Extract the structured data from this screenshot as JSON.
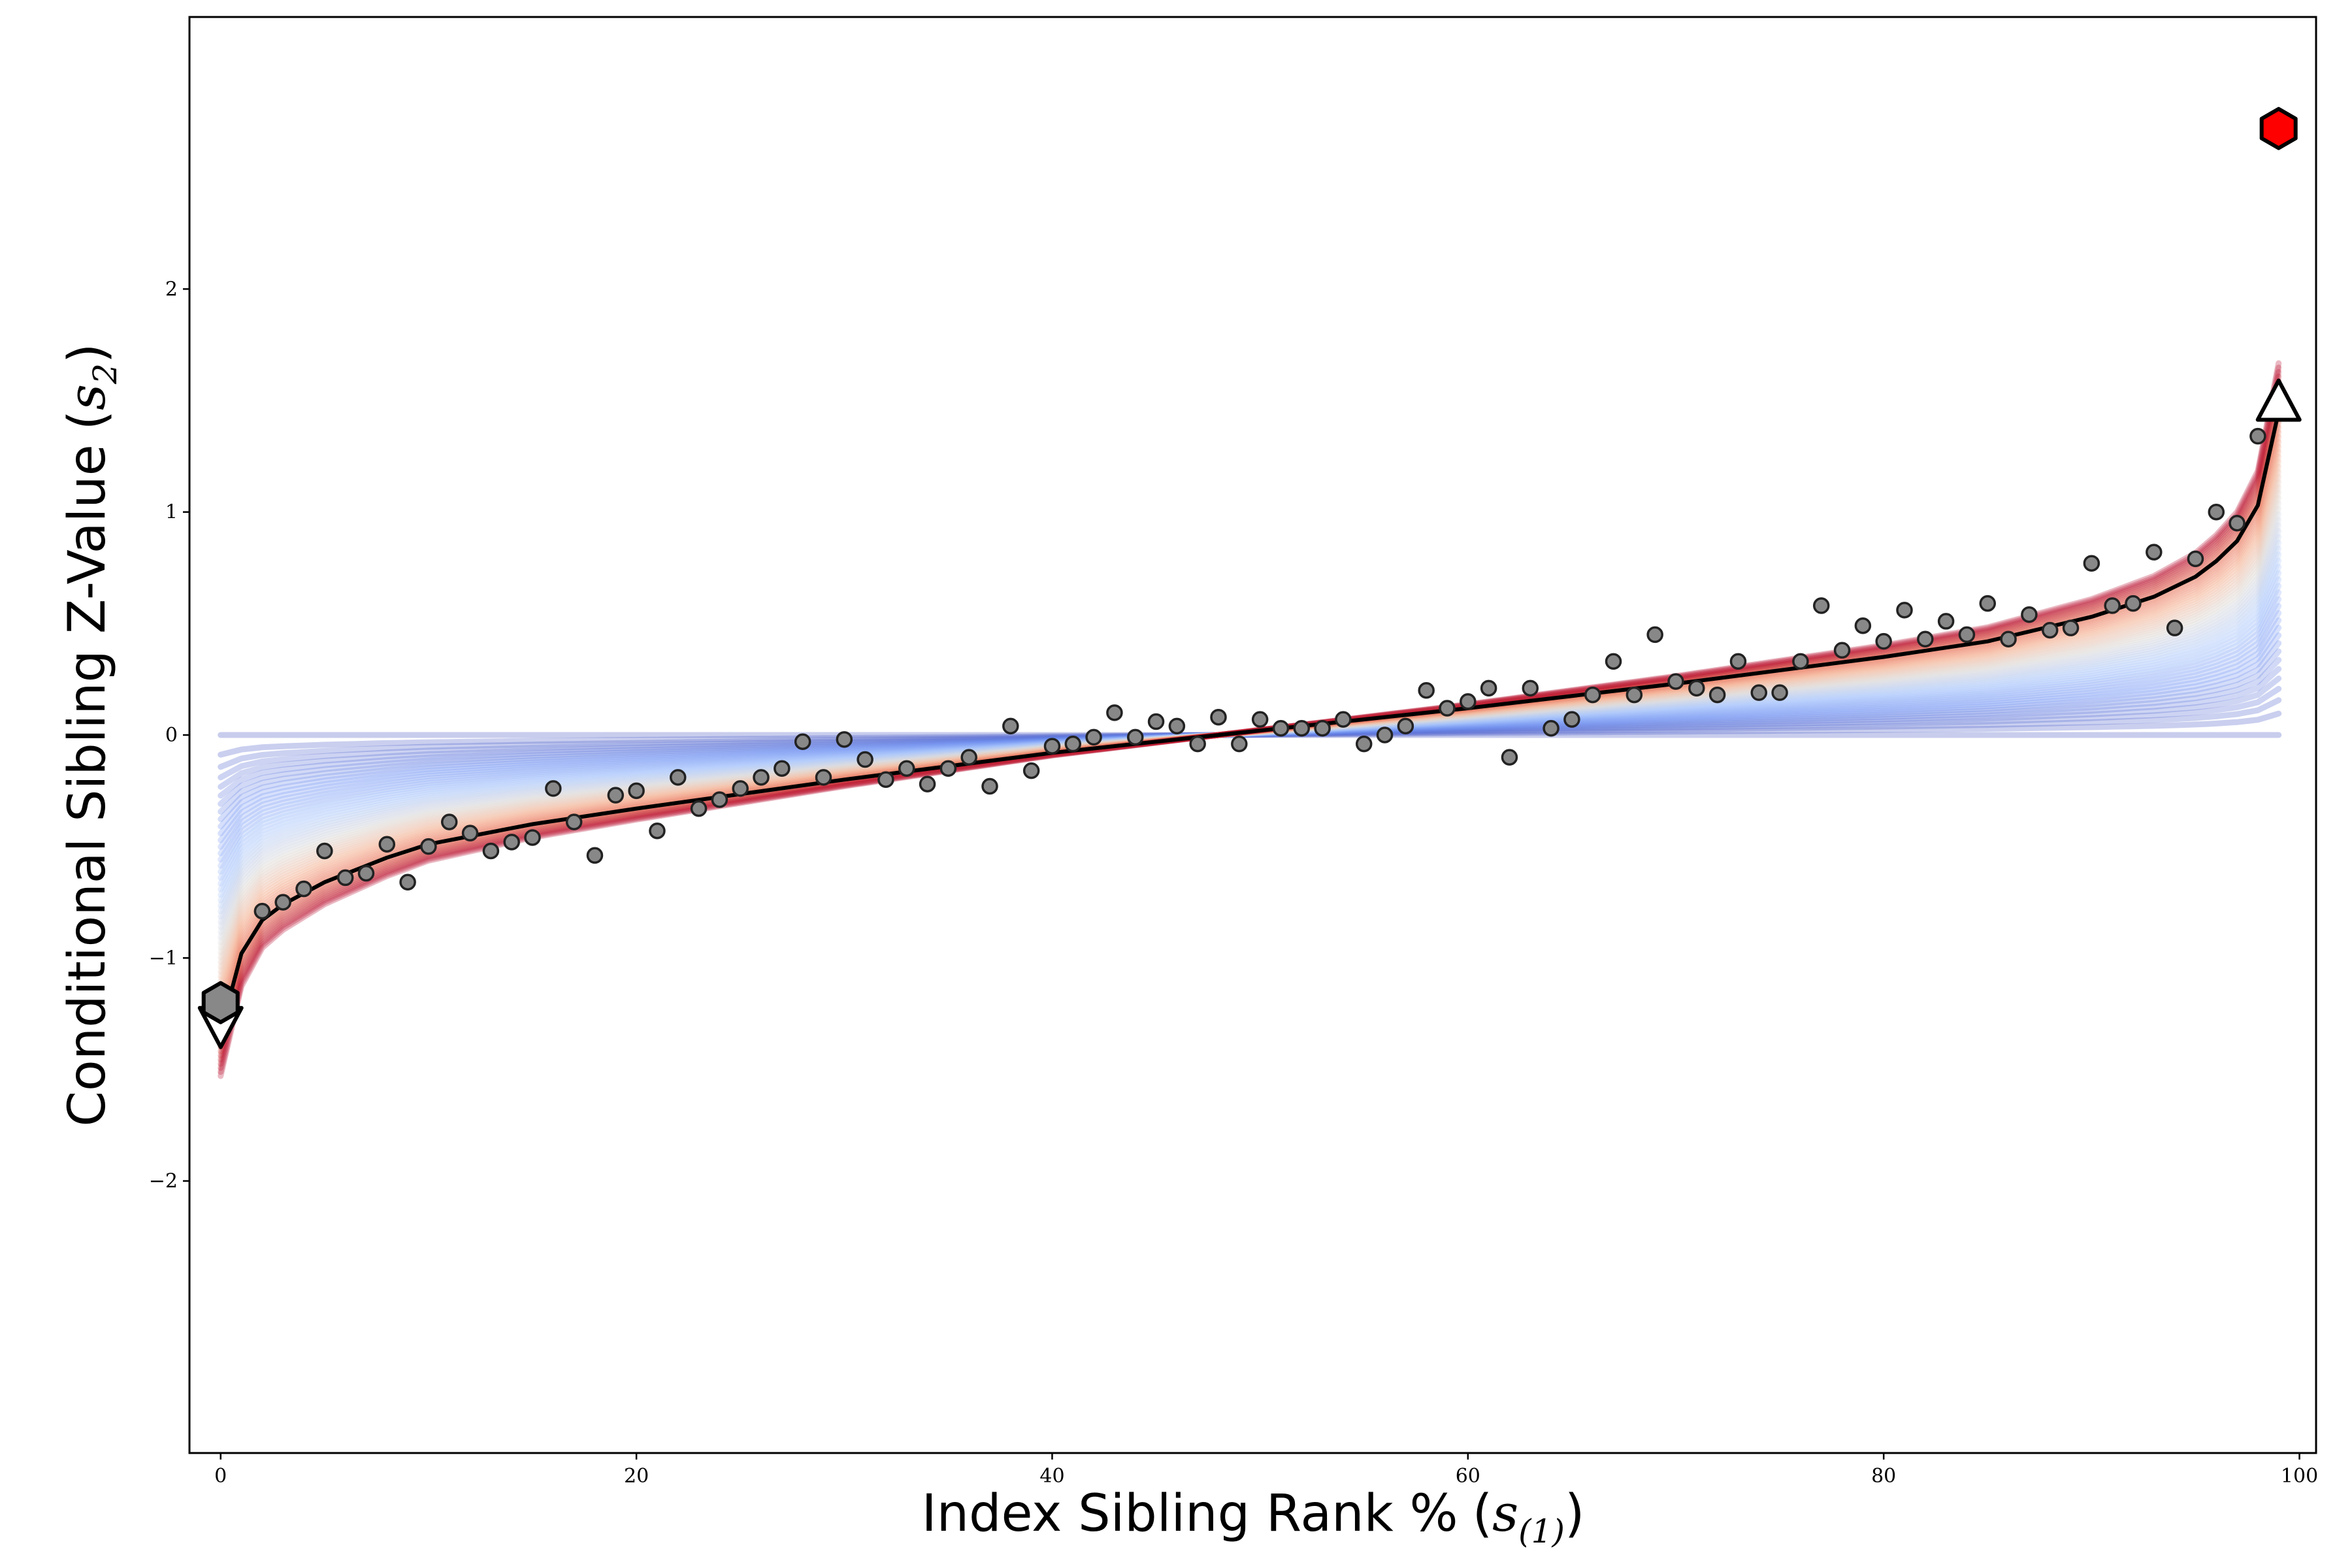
{
  "chart_data": {
    "type": "line",
    "xlabel": "Index Sibling Rank %",
    "xlabel_symbol": "s",
    "xlabel_subscript": "(1)",
    "ylabel": "Conditional Sibling Z-Value",
    "ylabel_symbol": "s",
    "ylabel_subscript": "2",
    "xlim": [
      -1.5,
      100.8
    ],
    "ylim": [
      -3.22,
      3.22
    ],
    "x_ticks": [
      0,
      20,
      40,
      60,
      80,
      100
    ],
    "y_ticks": [
      -2,
      -1,
      0,
      1,
      2
    ],
    "y_tick_labels": [
      "−2",
      "−1",
      "0",
      "1",
      "2"
    ],
    "grid": false,
    "legend": "none",
    "fan_band": {
      "description_colormap": "coolwarm",
      "x_range": [
        0,
        99
      ],
      "colors": [
        "#3b4cc0",
        "#6f92f3",
        "#aac7fd",
        "#dddcdc",
        "#f7b89c",
        "#e7745b",
        "#b40426"
      ]
    },
    "mean_curve": {
      "color": "#000000",
      "x": [
        0,
        1,
        2,
        3,
        5,
        8,
        10,
        15,
        20,
        30,
        40,
        50,
        60,
        70,
        80,
        85,
        90,
        93,
        95,
        96,
        97,
        98,
        99
      ],
      "y": [
        -1.33,
        -0.98,
        -0.83,
        -0.76,
        -0.66,
        -0.55,
        -0.49,
        -0.4,
        -0.33,
        -0.2,
        -0.08,
        0.02,
        0.12,
        0.23,
        0.35,
        0.42,
        0.53,
        0.62,
        0.71,
        0.78,
        0.87,
        1.03,
        1.45
      ]
    },
    "scatter_points": {
      "color": "#888888",
      "x": [
        2,
        3,
        4,
        5,
        6,
        7,
        8,
        9,
        10,
        11,
        12,
        13,
        14,
        15,
        16,
        17,
        18,
        19,
        20,
        21,
        22,
        23,
        24,
        25,
        26,
        27,
        28,
        29,
        30,
        31,
        32,
        33,
        34,
        35,
        36,
        37,
        38,
        39,
        40,
        41,
        42,
        43,
        44,
        45,
        46,
        47,
        48,
        49,
        50,
        51,
        52,
        53,
        54,
        55,
        56,
        57,
        58,
        59,
        60,
        61,
        62,
        63,
        64,
        65,
        66,
        67,
        68,
        69,
        70,
        71,
        72,
        73,
        74,
        75,
        76,
        77,
        78,
        79,
        80,
        81,
        82,
        83,
        84,
        85,
        86,
        87,
        88,
        89,
        90,
        91,
        92,
        93,
        94,
        95,
        96,
        97,
        98
      ],
      "y": [
        -0.79,
        -0.75,
        -0.69,
        -0.52,
        -0.64,
        -0.62,
        -0.49,
        -0.66,
        -0.5,
        -0.39,
        -0.44,
        -0.52,
        -0.48,
        -0.46,
        -0.24,
        -0.39,
        -0.54,
        -0.27,
        -0.25,
        -0.43,
        -0.19,
        -0.33,
        -0.29,
        -0.24,
        -0.19,
        -0.15,
        -0.03,
        -0.19,
        -0.02,
        -0.11,
        -0.2,
        -0.15,
        -0.22,
        -0.15,
        -0.1,
        -0.23,
        0.04,
        -0.16,
        -0.05,
        -0.04,
        -0.01,
        0.1,
        -0.01,
        0.06,
        0.04,
        -0.04,
        0.08,
        -0.04,
        0.07,
        0.03,
        0.03,
        0.03,
        0.07,
        -0.04,
        0.0,
        0.04,
        0.2,
        0.12,
        0.15,
        0.21,
        -0.1,
        0.21,
        0.03,
        0.07,
        0.18,
        0.33,
        0.18,
        0.45,
        0.24,
        0.21,
        0.18,
        0.33,
        0.19,
        0.19,
        0.33,
        0.58,
        0.38,
        0.49,
        0.42,
        0.56,
        0.43,
        0.51,
        0.45,
        0.59,
        0.43,
        0.54,
        0.47,
        0.48,
        0.77,
        0.58,
        0.59,
        0.82,
        0.48,
        0.79,
        1.0,
        0.95,
        1.34
      ]
    },
    "markers": [
      {
        "name": "min-down-triangle",
        "shape": "triangle-down",
        "x": 0,
        "y": -1.3,
        "fill": "#ffffff"
      },
      {
        "name": "min-gray-hexagon",
        "shape": "hexagon",
        "x": 0,
        "y": -1.2,
        "fill": "#888888"
      },
      {
        "name": "max-up-triangle",
        "shape": "triangle-up",
        "x": 99,
        "y": 1.49,
        "fill": "#ffffff"
      },
      {
        "name": "max-red-hexagon",
        "shape": "hexagon",
        "x": 99,
        "y": 2.72,
        "fill": "#ff0000"
      }
    ]
  }
}
